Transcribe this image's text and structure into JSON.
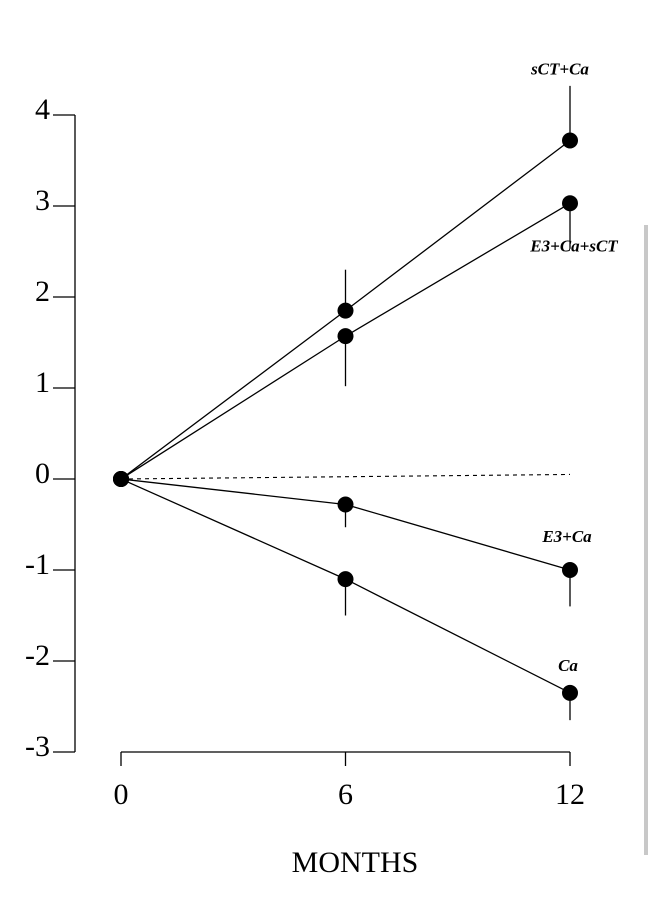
{
  "chart_data": {
    "type": "line",
    "title": "",
    "xlabel": "MONTHS",
    "ylabel": "",
    "x": [
      0,
      6,
      12
    ],
    "x_ticks": [
      0,
      6,
      12
    ],
    "y_ticks": [
      4,
      3,
      2,
      1,
      0,
      -1,
      -2,
      -3
    ],
    "xlim": [
      0,
      12
    ],
    "ylim": [
      -3,
      4
    ],
    "grid": false,
    "legend": "none; series labelled directly at right end of lines",
    "reference_line": {
      "y_start": 0,
      "y_end": 0.05,
      "style": "dashed"
    },
    "series": [
      {
        "name": "sCT+Ca",
        "values": [
          0,
          1.85,
          3.72
        ],
        "error": [
          0,
          0.45,
          0.6
        ]
      },
      {
        "name": "E3+Ca+sCT",
        "values": [
          0,
          1.57,
          3.03
        ],
        "error": [
          0,
          0.55,
          0.5
        ]
      },
      {
        "name": "E3+Ca",
        "values": [
          0,
          -0.28,
          -1.0
        ],
        "error": [
          0,
          0.25,
          0.4
        ]
      },
      {
        "name": "Ca",
        "values": [
          0,
          -1.1,
          -2.35
        ],
        "error": [
          0,
          0.4,
          0.3
        ]
      }
    ],
    "marker": "filled-circle",
    "line_color": "#000000"
  }
}
